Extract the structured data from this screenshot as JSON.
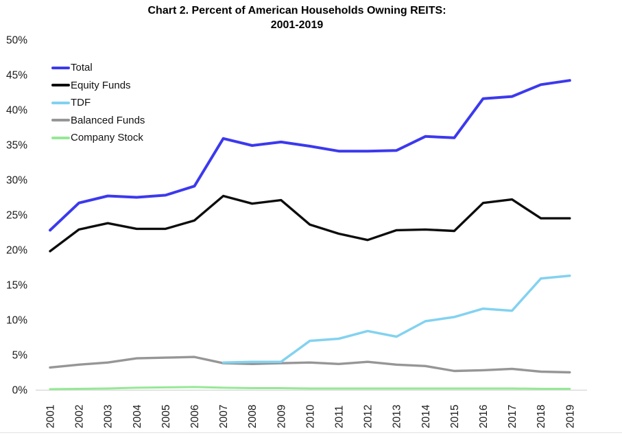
{
  "title": {
    "line1": "Chart 2. Percent of American Households Owning REITS:",
    "line2": "2001-2019"
  },
  "chart_data": {
    "type": "line",
    "x": [
      2001,
      2002,
      2003,
      2004,
      2005,
      2006,
      2007,
      2008,
      2009,
      2010,
      2011,
      2012,
      2013,
      2014,
      2015,
      2016,
      2017,
      2018,
      2019
    ],
    "x_tick_labels": [
      "2001",
      "2002",
      "2003",
      "2004",
      "2005",
      "2006",
      "2007",
      "2008",
      "2009",
      "2010",
      "2011",
      "2012",
      "2013",
      "2014",
      "2015",
      "2016",
      "2017",
      "2018",
      "2019"
    ],
    "yticks": [
      0,
      5,
      10,
      15,
      20,
      25,
      30,
      35,
      40,
      45,
      50
    ],
    "y_tick_labels": [
      "0%",
      "5%",
      "10%",
      "15%",
      "20%",
      "25%",
      "30%",
      "35%",
      "40%",
      "45%",
      "50%"
    ],
    "ylim": [
      0,
      50
    ],
    "grid": false,
    "legend_position": "top-left",
    "axis_line_color": "#d9d9d9",
    "series": [
      {
        "name": "Total",
        "color": "#3c39ee",
        "values": [
          22.8,
          26.7,
          27.7,
          27.5,
          27.8,
          29.1,
          35.9,
          34.9,
          35.4,
          34.8,
          34.1,
          34.1,
          34.2,
          36.2,
          36.0,
          41.6,
          41.9,
          43.6,
          44.2
        ]
      },
      {
        "name": "Equity Funds",
        "color": "#0d0d0d",
        "values": [
          19.8,
          22.9,
          23.8,
          23.0,
          23.0,
          24.2,
          27.7,
          26.6,
          27.1,
          23.6,
          22.3,
          21.4,
          22.8,
          22.9,
          22.7,
          26.7,
          27.2,
          24.5,
          24.5
        ]
      },
      {
        "name": "TDF",
        "color": "#82d2f0",
        "values": [
          null,
          null,
          null,
          null,
          null,
          null,
          3.9,
          4.0,
          4.0,
          7.0,
          7.3,
          8.4,
          7.6,
          9.8,
          10.4,
          11.6,
          11.3,
          15.9,
          16.3
        ]
      },
      {
        "name": "Balanced Funds",
        "color": "#969696",
        "values": [
          3.2,
          3.6,
          3.9,
          4.5,
          4.6,
          4.7,
          3.8,
          3.7,
          3.8,
          3.9,
          3.7,
          4.0,
          3.6,
          3.4,
          2.7,
          2.8,
          3.0,
          2.6,
          2.5
        ]
      },
      {
        "name": "Company Stock",
        "color": "#95e895",
        "values": [
          0.1,
          0.15,
          0.2,
          0.3,
          0.35,
          0.4,
          0.3,
          0.25,
          0.25,
          0.2,
          0.2,
          0.2,
          0.2,
          0.2,
          0.2,
          0.2,
          0.2,
          0.15,
          0.15
        ]
      }
    ]
  }
}
